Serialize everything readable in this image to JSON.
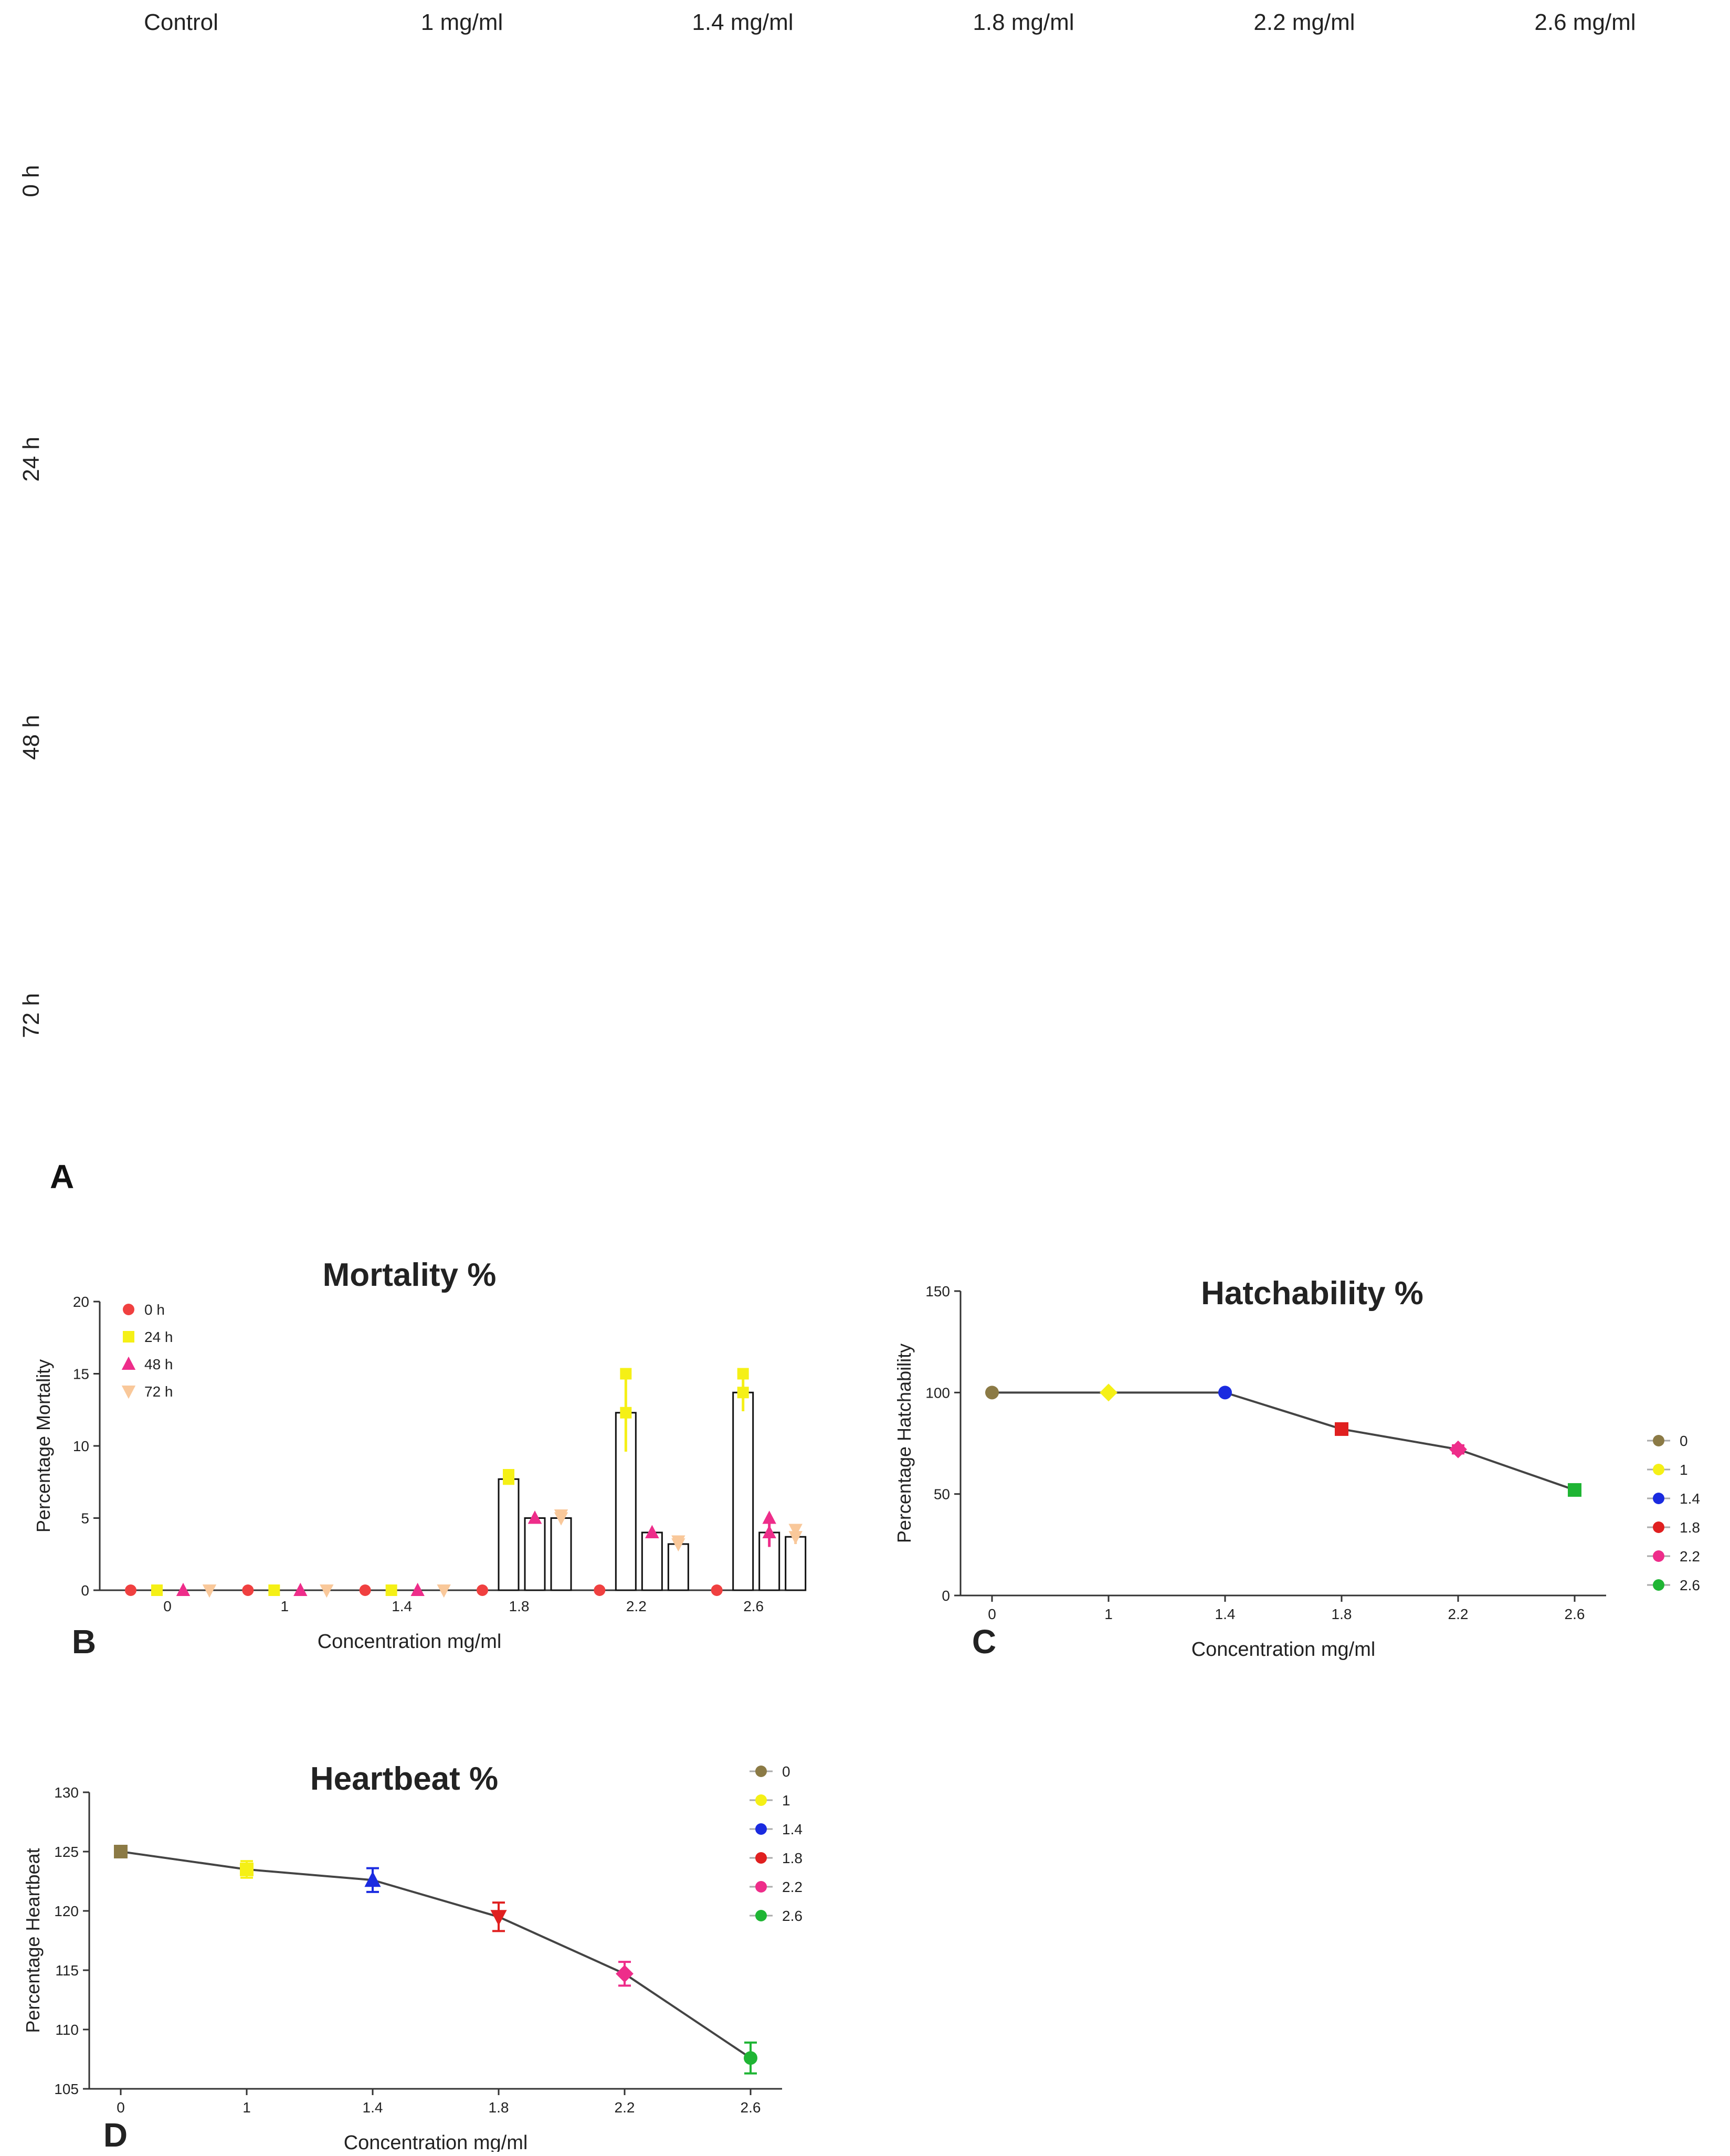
{
  "panel_a": {
    "letter": "A",
    "columns": [
      "Control",
      "1 mg/ml",
      "1.4 mg/ml",
      "1.8 mg/ml",
      "2.2 mg/ml",
      "2.6 mg/ml"
    ],
    "rows": [
      "0 h",
      "24 h",
      "48 h",
      "72 h"
    ]
  },
  "chart_data": [
    {
      "panel": "B",
      "type": "bar",
      "title": "Mortality %",
      "xlabel": "Concentration mg/ml",
      "ylabel": "Percentage Mortality",
      "categories": [
        "0",
        "1",
        "1.4",
        "1.8",
        "2.2",
        "2.6"
      ],
      "ylim": [
        0,
        20
      ],
      "yticks": [
        0,
        5,
        10,
        15,
        20
      ],
      "legend_position": "top-left",
      "series": [
        {
          "name": "0 h",
          "color": "#f04040",
          "marker": "circle",
          "values": [
            0,
            0,
            0,
            0,
            0,
            0
          ],
          "errors": [
            0,
            0,
            0,
            0,
            0,
            0
          ]
        },
        {
          "name": "24 h",
          "color": "#f5f016",
          "marker": "square",
          "values": [
            0,
            0,
            0,
            7.7,
            12.3,
            13.7
          ],
          "errors": [
            0,
            0,
            0,
            0.3,
            2.7,
            1.3
          ]
        },
        {
          "name": "48 h",
          "color": "#ee2d8a",
          "marker": "triangle-up",
          "values": [
            0,
            0,
            0,
            5.0,
            4.0,
            4.0
          ],
          "errors": [
            0,
            0,
            0,
            0,
            0,
            1.0
          ]
        },
        {
          "name": "72 h",
          "color": "#f9c89a",
          "marker": "triangle-down",
          "values": [
            0,
            0,
            0,
            5.0,
            3.2,
            3.7
          ],
          "errors": [
            0,
            0,
            0,
            0.2,
            0.2,
            0.5
          ]
        }
      ]
    },
    {
      "panel": "C",
      "type": "line",
      "title": "Hatchability %",
      "xlabel": "Concentration mg/ml",
      "ylabel": "Percentage Hatchability",
      "x": [
        "0",
        "1",
        "1.4",
        "1.8",
        "2.2",
        "2.6"
      ],
      "y": [
        100,
        100,
        100,
        82,
        72,
        52
      ],
      "errors": [
        0,
        0,
        0,
        2,
        2,
        2
      ],
      "ylim": [
        0,
        150
      ],
      "yticks": [
        0,
        50,
        100,
        150
      ],
      "legend_position": "right",
      "legend": [
        "0",
        "1",
        "1.4",
        "1.8",
        "2.2",
        "2.6"
      ],
      "point_colors": [
        "#8b7a45",
        "#f5f016",
        "#1a2be0",
        "#e02020",
        "#ee2d8a",
        "#1fb534"
      ],
      "point_markers": [
        "circle",
        "diamond",
        "circle",
        "square",
        "diamond",
        "square"
      ]
    },
    {
      "panel": "D",
      "type": "line",
      "title": "Heartbeat %",
      "xlabel": "Concentration mg/ml",
      "ylabel": "Percentage Heartbeat",
      "x": [
        "0",
        "1",
        "1.4",
        "1.8",
        "2.2",
        "2.6"
      ],
      "y": [
        125,
        123.5,
        122.6,
        119.5,
        114.7,
        107.6
      ],
      "errors": [
        0.3,
        0.7,
        1.0,
        1.2,
        1.0,
        1.3
      ],
      "ylim": [
        105,
        130
      ],
      "yticks": [
        105,
        110,
        115,
        120,
        125,
        130
      ],
      "legend_position": "top-right",
      "legend": [
        "0",
        "1",
        "1.4",
        "1.8",
        "2.2",
        "2.6"
      ],
      "point_colors": [
        "#8b7a45",
        "#f5f016",
        "#1a2be0",
        "#e02020",
        "#ee2d8a",
        "#1fb534"
      ],
      "point_markers": [
        "square",
        "square",
        "triangle-up",
        "triangle-down",
        "diamond",
        "circle"
      ]
    }
  ]
}
